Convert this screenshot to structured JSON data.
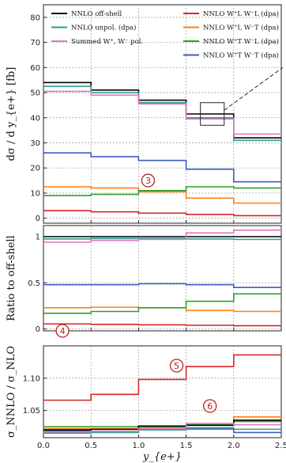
{
  "chart_data": {
    "type": "line",
    "x_label": "y_{e+}",
    "x_bins": [
      0.0,
      0.5,
      1.0,
      1.5,
      2.0,
      2.5
    ],
    "x_ticks": [
      "0.0",
      "0.5",
      "1.0",
      "1.5",
      "2.0",
      "2.5"
    ],
    "colors": {
      "offshell": "#000000",
      "unpol": "#2a9d8f",
      "summed": "#e377c2",
      "LL": "#d62728",
      "LT": "#ff7f0e",
      "TL": "#2ca02c",
      "TT": "#3b5cc4"
    },
    "legend": [
      {
        "key": "offshell",
        "label": "NNLO off-shell"
      },
      {
        "key": "unpol",
        "label": "NNLO unpol. (dpa)"
      },
      {
        "key": "summed",
        "label": "Summed W⁺, W⁻ pol."
      },
      {
        "key": "LL",
        "label": "NNLO W⁺L W⁻L (dpa)"
      },
      {
        "key": "LT",
        "label": "NNLO W⁺L W⁻T (dpa)"
      },
      {
        "key": "TL",
        "label": "NNLO W⁺T W⁻L (dpa)"
      },
      {
        "key": "TT",
        "label": "NNLO W⁺T W⁻T (dpa)"
      }
    ],
    "panels": [
      {
        "id": "main",
        "ylabel": "dσ / d y_{e+} [fb]",
        "ylim": [
          -2,
          85
        ],
        "yticks": [
          0,
          10,
          20,
          30,
          40,
          50,
          60,
          70,
          80
        ],
        "series": [
          {
            "key": "offshell",
            "values": [
              54.0,
              51.0,
              47.0,
              41.5,
              32.0
            ]
          },
          {
            "key": "unpol",
            "values": [
              52.5,
              50.0,
              46.0,
              40.0,
              31.0
            ]
          },
          {
            "key": "summed",
            "values": [
              50.5,
              49.0,
              45.5,
              39.5,
              33.5
            ]
          },
          {
            "key": "TT",
            "values": [
              26.0,
              24.5,
              23.0,
              19.5,
              14.5
            ]
          },
          {
            "key": "LT",
            "values": [
              12.5,
              12.0,
              10.5,
              8.0,
              6.0
            ]
          },
          {
            "key": "TL",
            "values": [
              9.0,
              9.5,
              11.0,
              12.5,
              12.0
            ]
          },
          {
            "key": "LL",
            "values": [
              3.0,
              2.5,
              2.0,
              1.5,
              1.0
            ]
          }
        ]
      },
      {
        "id": "ratio",
        "ylabel": "Ratio to off-shell",
        "ylim": [
          -0.02,
          1.12
        ],
        "yticks": [
          0.0,
          0.5,
          1.0
        ],
        "series": [
          {
            "key": "offshell",
            "values": [
              1.0,
              1.0,
              1.0,
              1.0,
              1.0
            ]
          },
          {
            "key": "unpol",
            "values": [
              0.975,
              0.98,
              0.98,
              0.975,
              0.97
            ]
          },
          {
            "key": "summed",
            "values": [
              0.94,
              0.96,
              0.97,
              1.04,
              1.07
            ]
          },
          {
            "key": "TT",
            "values": [
              0.48,
              0.48,
              0.49,
              0.48,
              0.45
            ]
          },
          {
            "key": "LT",
            "values": [
              0.23,
              0.235,
              0.23,
              0.2,
              0.19
            ]
          },
          {
            "key": "TL",
            "values": [
              0.17,
              0.19,
              0.23,
              0.3,
              0.38
            ]
          },
          {
            "key": "LL",
            "values": [
              0.055,
              0.05,
              0.045,
              0.04,
              0.035
            ]
          }
        ]
      },
      {
        "id": "knlo",
        "ylabel": "σ_NNLO / σ_NLO",
        "ylim": [
          1.008,
          1.15
        ],
        "yticks": [
          1.05,
          1.1
        ],
        "ytick_labels": [
          "1.05",
          "1.10"
        ],
        "series": [
          {
            "key": "LL",
            "values": [
              1.066,
              1.075,
              1.098,
              1.118,
              1.136
            ]
          },
          {
            "key": "LT",
            "values": [
              1.022,
              1.022,
              1.024,
              1.028,
              1.04
            ]
          },
          {
            "key": "TL",
            "values": [
              1.025,
              1.025,
              1.025,
              1.028,
              1.033
            ]
          },
          {
            "key": "TT",
            "values": [
              1.018,
              1.018,
              1.021,
              1.023,
              1.016
            ]
          },
          {
            "key": "offshell",
            "values": [
              1.02,
              1.021,
              1.026,
              1.027,
              1.035
            ]
          },
          {
            "key": "unpol",
            "values": [
              1.015,
              1.016,
              1.02,
              1.021,
              1.021
            ]
          },
          {
            "key": "summed",
            "values": [
              1.017,
              1.018,
              1.022,
              1.03,
              1.028
            ]
          }
        ]
      }
    ],
    "annotations": [
      "3",
      "4",
      "5",
      "6"
    ]
  }
}
